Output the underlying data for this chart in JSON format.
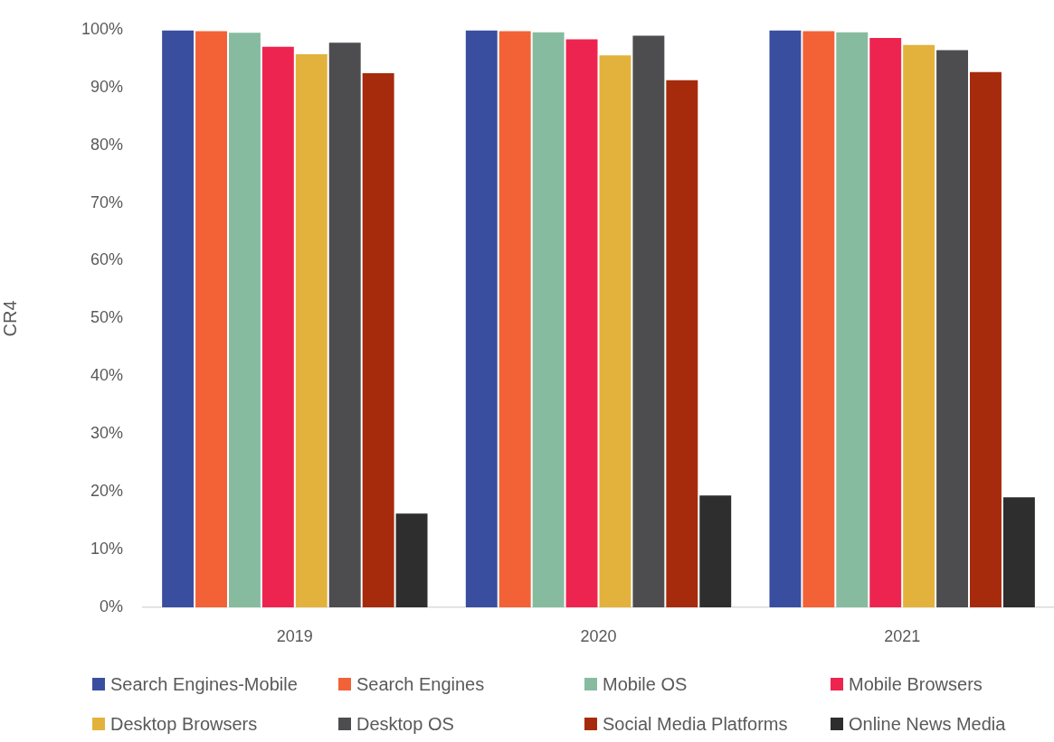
{
  "chart_data": {
    "type": "bar",
    "ylabel": "CR4",
    "categories": [
      "2019",
      "2020",
      "2021"
    ],
    "series": [
      {
        "name": "Search Engines-Mobile",
        "color": "#3a4ea0",
        "values": [
          100,
          100,
          100
        ]
      },
      {
        "name": "Search Engines",
        "color": "#f26236",
        "values": [
          99.9,
          99.9,
          99.9
        ]
      },
      {
        "name": "Mobile OS",
        "color": "#86bba0",
        "values": [
          99.6,
          99.7,
          99.7
        ]
      },
      {
        "name": "Mobile Browsers",
        "color": "#ee2450",
        "values": [
          97.2,
          98.5,
          98.7
        ]
      },
      {
        "name": "Desktop Browsers",
        "color": "#e2b23c",
        "values": [
          95.9,
          95.7,
          97.5
        ]
      },
      {
        "name": "Desktop OS",
        "color": "#4d4d4f",
        "values": [
          97.9,
          99.1,
          96.6
        ]
      },
      {
        "name": "Social Media Platforms",
        "color": "#a62b0c",
        "values": [
          92.6,
          91.4,
          92.8
        ]
      },
      {
        "name": "Online News Media",
        "color": "#2e2e2e",
        "values": [
          16.4,
          19.5,
          19.2
        ]
      }
    ],
    "ylim": [
      0,
      100
    ],
    "yticks": [
      {
        "value": 0,
        "label": "0%"
      },
      {
        "value": 10,
        "label": "10%"
      },
      {
        "value": 20,
        "label": "20%"
      },
      {
        "value": 30,
        "label": "30%"
      },
      {
        "value": 40,
        "label": "40%"
      },
      {
        "value": 50,
        "label": "50%"
      },
      {
        "value": 60,
        "label": "60%"
      },
      {
        "value": 70,
        "label": "70%"
      },
      {
        "value": 80,
        "label": "80%"
      },
      {
        "value": 90,
        "label": "90%"
      },
      {
        "value": 100,
        "label": "100%"
      }
    ],
    "grid": false,
    "legend": "bottom"
  }
}
